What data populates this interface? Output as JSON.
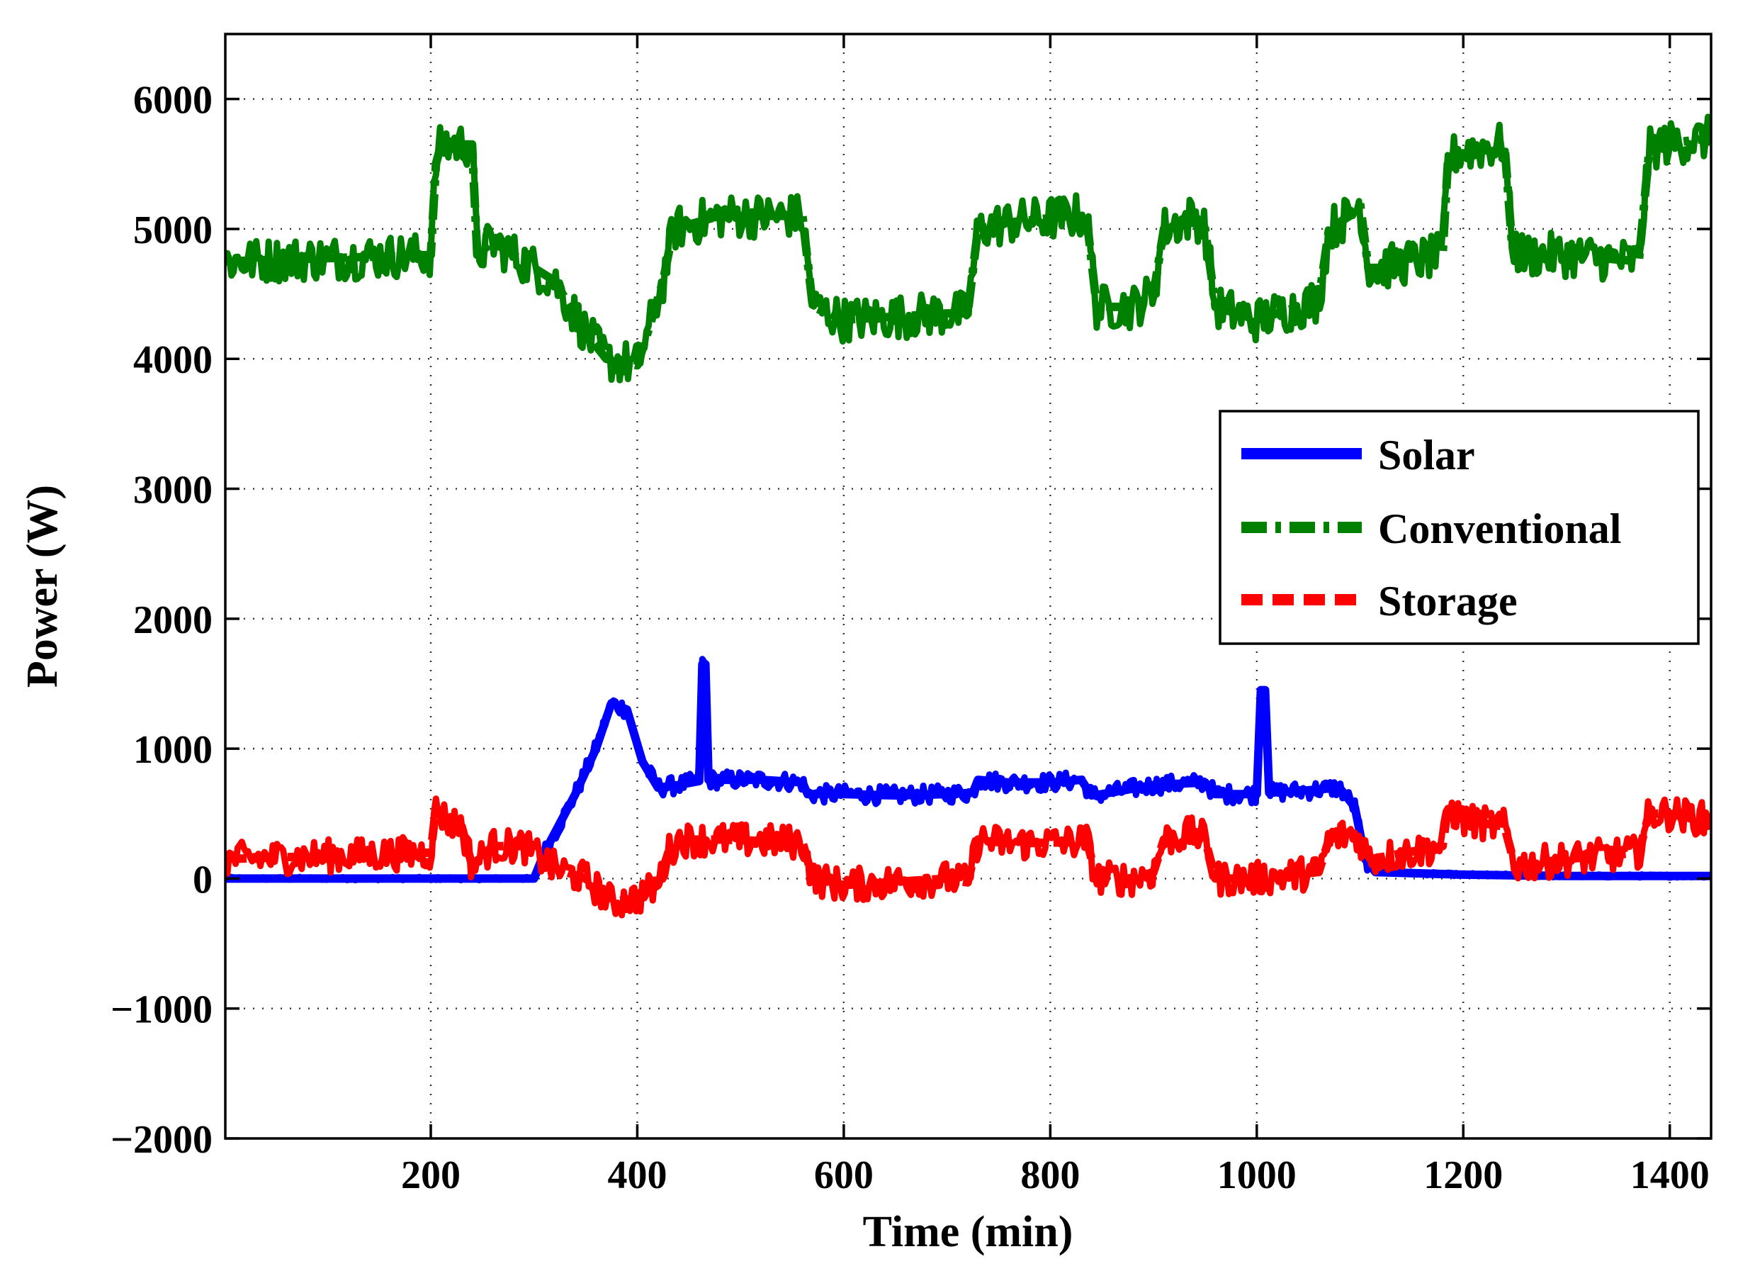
{
  "chart_data": {
    "type": "line",
    "title": "",
    "xlabel": "Time (min)",
    "ylabel": "Power (W)",
    "xlim": [
      1,
      1440
    ],
    "ylim": [
      -2000,
      6500
    ],
    "xticks": [
      200,
      400,
      600,
      800,
      1000,
      1200,
      1400
    ],
    "xtick_labels": [
      "200",
      "400",
      "600",
      "800",
      "1000",
      "1200",
      "1400"
    ],
    "yticks": [
      -2000,
      -1000,
      0,
      1000,
      2000,
      3000,
      4000,
      5000,
      6000
    ],
    "ytick_labels": [
      "−2000",
      "−1000",
      "0",
      "1000",
      "2000",
      "3000",
      "4000",
      "5000",
      "6000"
    ],
    "grid": true,
    "legend_position": "upper-right",
    "series": [
      {
        "name": "Solar",
        "color": "#0000ff",
        "line_style": "solid",
        "noise": 70,
        "x": [
          1,
          300,
          310,
          340,
          360,
          375,
          390,
          405,
          420,
          440,
          460,
          463,
          466,
          469,
          480,
          520,
          560,
          565,
          600,
          650,
          700,
          725,
          730,
          760,
          800,
          830,
          840,
          850,
          900,
          950,
          960,
          1000,
          1004,
          1008,
          1012,
          1050,
          1080,
          1095,
          1105,
          1115,
          1200,
          1300,
          1440
        ],
        "y": [
          0,
          0,
          200,
          650,
          1000,
          1350,
          1300,
          900,
          700,
          720,
          750,
          1650,
          1650,
          760,
          760,
          760,
          740,
          650,
          650,
          640,
          650,
          660,
          760,
          740,
          740,
          760,
          640,
          650,
          720,
          740,
          650,
          650,
          1450,
          1450,
          660,
          680,
          700,
          550,
          150,
          50,
          30,
          20,
          20
        ]
      },
      {
        "name": "Conventional",
        "color": "#008000",
        "line_style": "dash-dot",
        "noise": 170,
        "x": [
          1,
          200,
          205,
          210,
          240,
          245,
          260,
          290,
          320,
          350,
          370,
          400,
          410,
          425,
          435,
          480,
          560,
          570,
          600,
          700,
          720,
          730,
          760,
          820,
          835,
          845,
          880,
          900,
          910,
          940,
          950,
          960,
          1000,
          1060,
          1070,
          1090,
          1100,
          1108,
          1120,
          1180,
          1185,
          1195,
          1240,
          1247,
          1255,
          1300,
          1370,
          1380,
          1390,
          1440
        ],
        "y": [
          4750,
          4800,
          5500,
          5650,
          5650,
          4800,
          4900,
          4750,
          4600,
          4200,
          4000,
          3950,
          4200,
          4600,
          5000,
          5100,
          5100,
          4400,
          4300,
          4350,
          4350,
          5000,
          5050,
          5100,
          5100,
          4400,
          4400,
          4500,
          5000,
          5100,
          5000,
          4400,
          4300,
          4450,
          5000,
          5100,
          5200,
          4700,
          4700,
          4800,
          5500,
          5600,
          5650,
          4900,
          4800,
          4800,
          4750,
          5600,
          5650,
          5700
        ]
      },
      {
        "name": "Storage",
        "color": "#ff0000",
        "line_style": "dashed",
        "noise": 130,
        "x": [
          1,
          200,
          205,
          215,
          230,
          240,
          260,
          290,
          320,
          350,
          375,
          400,
          420,
          430,
          440,
          480,
          560,
          570,
          600,
          700,
          720,
          730,
          760,
          820,
          835,
          845,
          880,
          900,
          910,
          940,
          950,
          960,
          1000,
          1060,
          1070,
          1090,
          1100,
          1110,
          1180,
          1185,
          1200,
          1240,
          1250,
          1300,
          1370,
          1380,
          1400,
          1440
        ],
        "y": [
          150,
          200,
          550,
          450,
          400,
          100,
          250,
          250,
          80,
          0,
          -180,
          -150,
          -50,
          200,
          300,
          300,
          280,
          0,
          -50,
          0,
          -30,
          300,
          270,
          280,
          300,
          0,
          0,
          50,
          300,
          350,
          300,
          0,
          0,
          50,
          300,
          350,
          300,
          150,
          250,
          550,
          450,
          400,
          100,
          150,
          200,
          500,
          500,
          450
        ]
      }
    ]
  }
}
